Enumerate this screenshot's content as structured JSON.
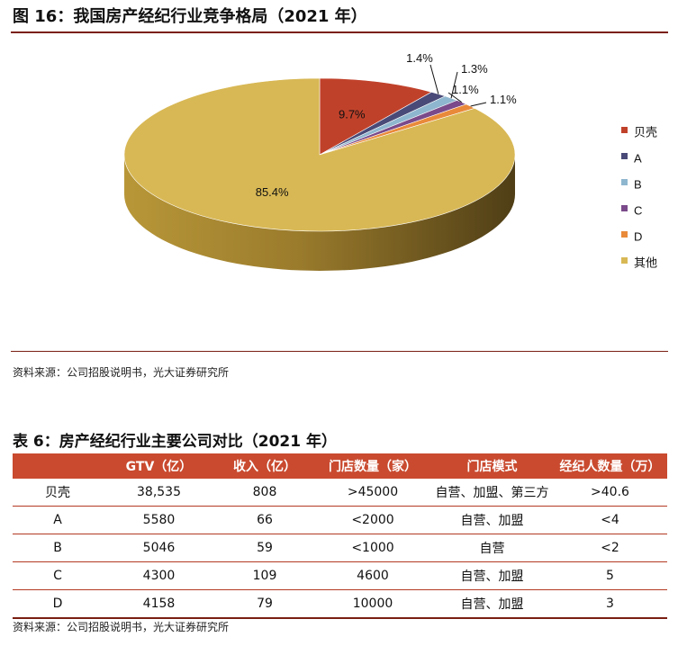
{
  "figure": {
    "title": "图 16：我国房产经纪行业竞争格局（2021 年）",
    "source": "资料来源：公司招股说明书，光大证券研究所"
  },
  "chart_data": {
    "type": "pie",
    "title": "",
    "legend_position": "right",
    "slices": [
      {
        "name": "贝壳",
        "value": 9.7,
        "label": "9.7%",
        "color": "#c0412a"
      },
      {
        "name": "A",
        "value": 1.4,
        "label": "1.4%",
        "color": "#4a4a78"
      },
      {
        "name": "B",
        "value": 1.3,
        "label": "1.3%",
        "color": "#8fb6cf"
      },
      {
        "name": "C",
        "value": 1.1,
        "label": "1.1%",
        "color": "#7a4a8a"
      },
      {
        "name": "D",
        "value": 1.1,
        "label": "1.1%",
        "color": "#e98a3a"
      },
      {
        "name": "其他",
        "value": 85.4,
        "label": "85.4%",
        "color": "#d8b855"
      }
    ]
  },
  "table": {
    "title": "表 6：房产经纪行业主要公司对比（2021 年）",
    "headers": [
      "",
      "GTV（亿）",
      "收入（亿）",
      "门店数量（家）",
      "门店模式",
      "经纪人数量（万）"
    ],
    "rows": [
      [
        "贝壳",
        "38,535",
        "808",
        ">45000",
        "自营、加盟、第三方",
        ">40.6"
      ],
      [
        "A",
        "5580",
        "66",
        "<2000",
        "自营、加盟",
        "<4"
      ],
      [
        "B",
        "5046",
        "59",
        "<1000",
        "自营",
        "<2"
      ],
      [
        "C",
        "4300",
        "109",
        "4600",
        "自营、加盟",
        "5"
      ],
      [
        "D",
        "4158",
        "79",
        "10000",
        "自营、加盟",
        "3"
      ]
    ],
    "source": "资料来源：公司招股说明书，光大证券研究所"
  }
}
